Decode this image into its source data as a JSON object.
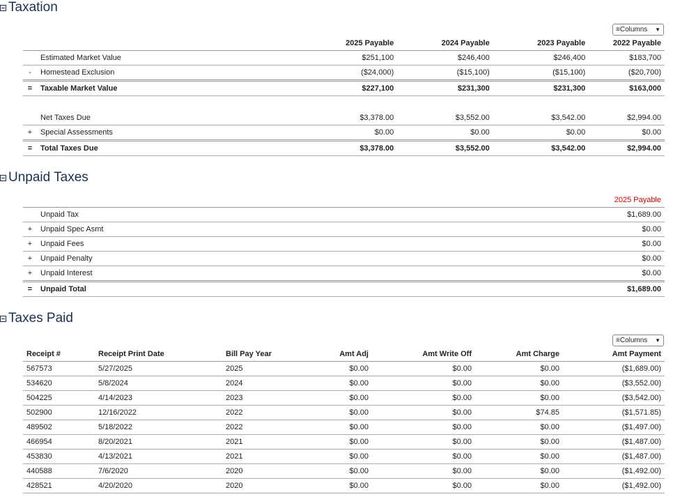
{
  "taxation": {
    "title": "Taxation",
    "columns_label": "Columns",
    "headers": [
      "2025 Payable",
      "2024 Payable",
      "2023 Payable",
      "2022 Payable"
    ],
    "rows": [
      {
        "op": "",
        "label": "Estimated Market Value",
        "vals": [
          "$251,100",
          "$246,400",
          "$246,400",
          "$183,700"
        ]
      },
      {
        "op": "-",
        "label": "Homestead Exclusion",
        "vals": [
          "($24,000)",
          "($15,100)",
          "($15,100)",
          "($20,700)"
        ]
      },
      {
        "op": "=",
        "label": "Taxable Market Value",
        "vals": [
          "$227,100",
          "$231,300",
          "$231,300",
          "$163,000"
        ]
      },
      {
        "op": "",
        "label": "Net Taxes Due",
        "vals": [
          "$3,378.00",
          "$3,552.00",
          "$3,542.00",
          "$2,994.00"
        ]
      },
      {
        "op": "+",
        "label": "Special Assessments",
        "vals": [
          "$0.00",
          "$0.00",
          "$0.00",
          "$0.00"
        ]
      },
      {
        "op": "=",
        "label": "Total Taxes Due",
        "vals": [
          "$3,378.00",
          "$3,552.00",
          "$3,542.00",
          "$2,994.00"
        ]
      }
    ]
  },
  "unpaid": {
    "title": "Unpaid Taxes",
    "header": "2025 Payable",
    "header_color": "#d40000",
    "rows": [
      {
        "op": "",
        "label": "Unpaid Tax",
        "val": "$1,689.00"
      },
      {
        "op": "+",
        "label": "Unpaid Spec Asmt",
        "val": "$0.00"
      },
      {
        "op": "+",
        "label": "Unpaid Fees",
        "val": "$0.00"
      },
      {
        "op": "+",
        "label": "Unpaid Penalty",
        "val": "$0.00"
      },
      {
        "op": "+",
        "label": "Unpaid Interest",
        "val": "$0.00"
      },
      {
        "op": "=",
        "label": "Unpaid Total",
        "val": "$1,689.00"
      }
    ]
  },
  "paid": {
    "title": "Taxes Paid",
    "columns_label": "Columns",
    "headers": [
      "Receipt #",
      "Receipt Print Date",
      "Bill Pay Year",
      "Amt Adj",
      "Amt Write Off",
      "Amt Charge",
      "Amt Payment"
    ],
    "rows": [
      [
        "567573",
        "5/27/2025",
        "2025",
        "$0.00",
        "$0.00",
        "$0.00",
        "($1,689.00)"
      ],
      [
        "534620",
        "5/8/2024",
        "2024",
        "$0.00",
        "$0.00",
        "$0.00",
        "($3,552.00)"
      ],
      [
        "504225",
        "4/14/2023",
        "2023",
        "$0.00",
        "$0.00",
        "$0.00",
        "($3,542.00)"
      ],
      [
        "502900",
        "12/16/2022",
        "2022",
        "$0.00",
        "$0.00",
        "$74.85",
        "($1,571.85)"
      ],
      [
        "489502",
        "5/18/2022",
        "2022",
        "$0.00",
        "$0.00",
        "$0.00",
        "($1,497.00)"
      ],
      [
        "466954",
        "8/20/2021",
        "2021",
        "$0.00",
        "$0.00",
        "$0.00",
        "($1,487.00)"
      ],
      [
        "453830",
        "4/13/2021",
        "2021",
        "$0.00",
        "$0.00",
        "$0.00",
        "($1,487.00)"
      ],
      [
        "440588",
        "7/6/2020",
        "2020",
        "$0.00",
        "$0.00",
        "$0.00",
        "($1,492.00)"
      ],
      [
        "428521",
        "4/20/2020",
        "2020",
        "$0.00",
        "$0.00",
        "$0.00",
        "($1,492.00)"
      ]
    ]
  }
}
